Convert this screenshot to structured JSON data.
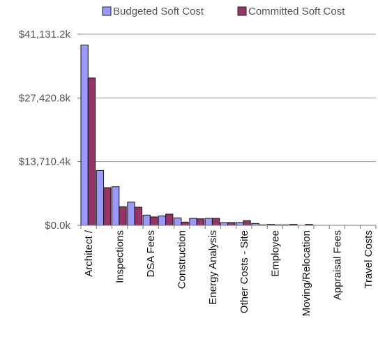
{
  "chart_data": {
    "type": "bar",
    "categories": [
      "Architect /",
      "",
      "Inspections",
      "",
      "DSA Fees",
      "",
      "Construction",
      "",
      "Energy Analysis",
      "",
      "Other Costs - Site",
      "",
      "Employee",
      "",
      "Moving/Relocation",
      "",
      "Appraisal Fees",
      "",
      "Travel Costs"
    ],
    "series": [
      {
        "name": "Budgeted Soft Cost",
        "color": "#9999ff",
        "values": [
          38800,
          11800,
          8300,
          5000,
          2200,
          2000,
          1600,
          1500,
          1500,
          600,
          600,
          400,
          200,
          100,
          0,
          0,
          0,
          0,
          0
        ]
      },
      {
        "name": "Committed Soft Cost",
        "color": "#993366",
        "values": [
          31700,
          8100,
          4000,
          3900,
          1800,
          2400,
          700,
          1400,
          1500,
          600,
          1000,
          100,
          100,
          200,
          200,
          0,
          0,
          0,
          0
        ]
      }
    ],
    "y_ticks": [
      "$0.0k",
      "$13,710.4k",
      "$27,420.8k",
      "$41,131.2k"
    ],
    "ylim": [
      0,
      41131.2
    ],
    "grid": true,
    "legend_position": "top"
  }
}
